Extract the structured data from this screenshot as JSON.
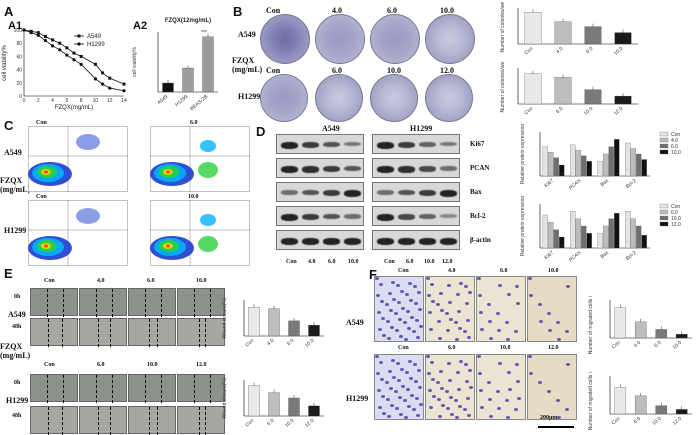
{
  "panels": {
    "A": "A",
    "A1": "A1",
    "A2": "A2",
    "B": "B",
    "C": "C",
    "D": "D",
    "E": "E",
    "F": "F"
  },
  "a1": {
    "ylabel": "cell viability%",
    "xlabel": "FZQX(mg/mL)",
    "xticks": [
      "0",
      "2",
      "4",
      "6",
      "8",
      "10",
      "12",
      "14"
    ],
    "yticks": [
      "0",
      "20",
      "40",
      "60",
      "80",
      "100"
    ],
    "legend": [
      "A549",
      "H1299"
    ]
  },
  "a2": {
    "title": "FZQX(12mg/mL)",
    "ylabel": "cell viability%",
    "categories": [
      "A549",
      "H1299",
      "BEAS-2B"
    ],
    "yticks": [
      "0",
      "50",
      "100"
    ],
    "sig": "***"
  },
  "b": {
    "conc_top": [
      "Con",
      "4.0",
      "6.0",
      "10.0"
    ],
    "conc_bottom": [
      "Con",
      "6.0",
      "10.0",
      "12.0"
    ],
    "row1": "A549",
    "row2": "H1299",
    "treat": "FZQX",
    "treat_unit": "(mg/mL)",
    "ylabel": "Number of colonies/well",
    "cats_top": [
      "Con",
      "4.0",
      "6.0",
      "10.0"
    ],
    "cats_bottom": [
      "Con",
      "6.0",
      "10.0",
      "12.0"
    ]
  },
  "c": {
    "row1": "A549",
    "row2": "H1299",
    "treat": "FZQX",
    "treat_unit": "(mg/mL)",
    "labels_top": [
      "Con",
      "6.0"
    ],
    "labels_bottom": [
      "Con",
      "10.0"
    ]
  },
  "d": {
    "col1": "A549",
    "col2": "H1299",
    "proteins": [
      "Ki67",
      "PCAN",
      "Bax",
      "Bcl-2",
      "β-actin"
    ],
    "lanes_left": [
      "Con",
      "4.0",
      "6.0",
      "10.0"
    ],
    "lanes_right": [
      "Con",
      "6.0",
      "10.0",
      "12.0"
    ],
    "ylabel": "Relative protein expression",
    "legend_top": [
      "Con",
      "4.0",
      "6.0",
      "10.0"
    ],
    "legend_bottom": [
      "Con",
      "6.0",
      "10.0",
      "12.0"
    ],
    "cats": [
      "Ki67",
      "PCAN",
      "Bax",
      "Bcl-2"
    ]
  },
  "e": {
    "cols_top": [
      "Con",
      "4.0",
      "6.0",
      "10.0"
    ],
    "cols_bottom": [
      "Con",
      "6.0",
      "10.0",
      "12.0"
    ],
    "rows": [
      "0h",
      "48h"
    ],
    "cell1": "A549",
    "cell2": "H1299",
    "treat": "FZQX",
    "treat_unit": "(mg/mL)",
    "ylabel": "Wound closure(%)"
  },
  "f": {
    "cols_top": [
      "Con",
      "4.0",
      "6.0",
      "10.0"
    ],
    "cols_bottom": [
      "Con",
      "6.0",
      "10.0",
      "12.0"
    ],
    "cell1": "A549",
    "cell2": "H1299",
    "scale": "200μm",
    "ylabel": "Number of migrated cells in 48h"
  },
  "chart_data": [
    {
      "type": "line",
      "title": "",
      "xlabel": "FZQX(mg/mL)",
      "ylabel": "cell viability%",
      "x": [
        0,
        1,
        2,
        3,
        4,
        5,
        6,
        7,
        8,
        10,
        11,
        12,
        14
      ],
      "ylim": [
        0,
        100
      ],
      "series": [
        {
          "name": "A549",
          "values": [
            100,
            98,
            96,
            90,
            85,
            80,
            73,
            65,
            60,
            48,
            35,
            27,
            18
          ]
        },
        {
          "name": "H1299",
          "values": [
            100,
            96,
            92,
            84,
            76,
            70,
            62,
            55,
            48,
            26,
            18,
            12,
            8
          ]
        }
      ]
    },
    {
      "type": "bar",
      "title": "FZQX(12mg/mL)",
      "ylabel": "cell viability%",
      "categories": [
        "A549",
        "H1299",
        "BEAS-2B"
      ],
      "values": [
        15,
        40,
        92
      ],
      "ylim": [
        0,
        100
      ]
    },
    {
      "type": "bar",
      "ylabel": "Number of colonies/well",
      "categories": [
        "Con",
        "4.0",
        "6.0",
        "10.0"
      ],
      "values": [
        530,
        370,
        290,
        190
      ],
      "ylim": [
        0,
        600
      ]
    },
    {
      "type": "bar",
      "ylabel": "Number of colonies/well",
      "categories": [
        "Con",
        "6.0",
        "10.0",
        "12.0"
      ],
      "values": [
        210,
        185,
        100,
        55
      ],
      "ylim": [
        0,
        250
      ]
    },
    {
      "type": "bar",
      "ylabel": "Relative protein expression",
      "categories": [
        "Ki67",
        "PCAN",
        "Bax",
        "Bcl-2"
      ],
      "ylim": [
        0,
        1.2
      ],
      "series": [
        {
          "name": "Con",
          "values": [
            0.8,
            0.85,
            0.4,
            0.9
          ]
        },
        {
          "name": "4.0",
          "values": [
            0.65,
            0.7,
            0.6,
            0.75
          ]
        },
        {
          "name": "6.0",
          "values": [
            0.5,
            0.55,
            0.8,
            0.6
          ]
        },
        {
          "name": "10.0",
          "values": [
            0.3,
            0.4,
            1.0,
            0.45
          ]
        }
      ]
    },
    {
      "type": "bar",
      "ylabel": "Relative protein expression",
      "categories": [
        "Ki67",
        "PCAN",
        "Bax",
        "Bcl-2"
      ],
      "ylim": [
        0,
        1.2
      ],
      "series": [
        {
          "name": "Con",
          "values": [
            0.9,
            1.0,
            0.4,
            1.0
          ]
        },
        {
          "name": "6.0",
          "values": [
            0.7,
            0.8,
            0.6,
            0.8
          ]
        },
        {
          "name": "10.0",
          "values": [
            0.5,
            0.6,
            0.8,
            0.6
          ]
        },
        {
          "name": "12.0",
          "values": [
            0.3,
            0.4,
            0.95,
            0.35
          ]
        }
      ]
    },
    {
      "type": "bar",
      "ylabel": "Wound closure(%)",
      "categories": [
        "Con",
        "4.0",
        "6.0",
        "10.0"
      ],
      "values": [
        80,
        76,
        42,
        30
      ],
      "ylim": [
        0,
        100
      ]
    },
    {
      "type": "bar",
      "ylabel": "Wound closure(%)",
      "categories": [
        "Con",
        "6.0",
        "10.0",
        "12.0"
      ],
      "values": [
        85,
        65,
        50,
        28
      ],
      "ylim": [
        0,
        100
      ]
    },
    {
      "type": "bar",
      "ylabel": "Number of migrated cells in 48h",
      "categories": [
        "Con",
        "4.0",
        "6.0",
        "10.0"
      ],
      "values": [
        160,
        85,
        45,
        20
      ],
      "ylim": [
        0,
        200
      ]
    },
    {
      "type": "bar",
      "ylabel": "Number of migrated cells in 48h",
      "categories": [
        "Con",
        "6.0",
        "10.0",
        "12.0"
      ],
      "values": [
        175,
        120,
        55,
        30
      ],
      "ylim": [
        0,
        250
      ]
    }
  ]
}
